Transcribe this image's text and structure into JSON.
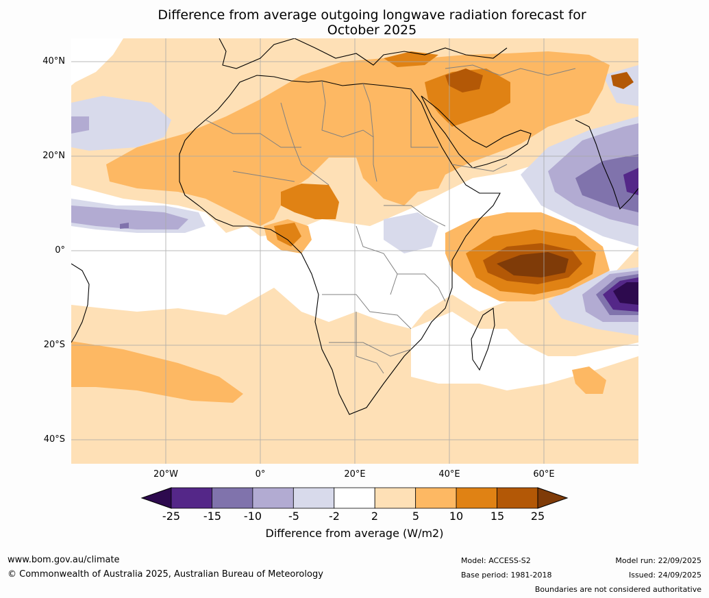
{
  "title_line1": "Difference from average outgoing longwave radiation forecast for",
  "title_line2": "October 2025",
  "lat_labels": [
    "40°N",
    "20°N",
    "0°",
    "20°S",
    "40°S"
  ],
  "lon_labels": [
    "20°W",
    "0°",
    "20°E",
    "40°E",
    "60°E"
  ],
  "colorbar": {
    "ticks": [
      "-25",
      "-15",
      "-10",
      "-5",
      "-2",
      "2",
      "5",
      "10",
      "15",
      "25"
    ],
    "label": "Difference from average (W/m2)",
    "colors": [
      "#2d0a4e",
      "#542788",
      "#8073ac",
      "#b2abd2",
      "#d8daeb",
      "#ffffff",
      "#fee0b6",
      "#fdb863",
      "#e08214",
      "#b35806",
      "#7f3b08"
    ]
  },
  "footer": {
    "website": "www.bom.gov.au/climate",
    "copyright": "© Commonwealth of Australia 2025, Australian Bureau of Meteorology",
    "model": "Model: ACCESS-S2",
    "base_period": "Base period: 1981-2018",
    "model_run": "Model run: 22/09/2025",
    "issued": "Issued: 24/09/2025",
    "boundaries": "Boundaries are not considered authoritative"
  }
}
